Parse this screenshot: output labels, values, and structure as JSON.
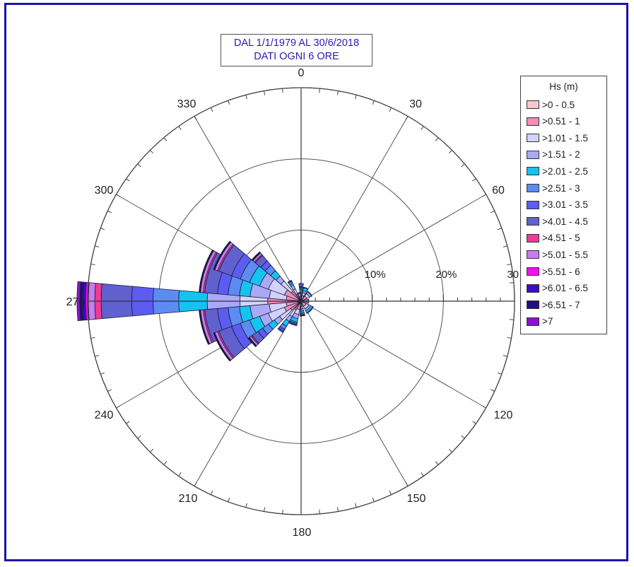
{
  "chart_data": {
    "type": "wind-rose",
    "title_lines": [
      "DAL 1/1/1979 AL 30/6/2018",
      "DATI OGNI 6 ORE"
    ],
    "angle_labels": [
      "0",
      "30",
      "60",
      "120",
      "150",
      "180",
      "210",
      "240",
      "270",
      "300",
      "330"
    ],
    "radial_axis": {
      "unit": "%",
      "max": 30,
      "ticks": [
        10,
        20,
        30
      ],
      "tick_labels": [
        "10%",
        "20%",
        "30"
      ]
    },
    "legend": {
      "title": "Hs (m)",
      "items": [
        {
          "label": ">0 - 0.5",
          "color": "#f7c8cf"
        },
        {
          "label": ">0.51 - 1",
          "color": "#f08eb8"
        },
        {
          "label": ">1.01 - 1.5",
          "color": "#d2d2fb"
        },
        {
          "label": ">1.51 - 2",
          "color": "#a9a9f8"
        },
        {
          "label": ">2.01 - 2.5",
          "color": "#14c4f0"
        },
        {
          "label": ">2.51 - 3",
          "color": "#5c8cf2"
        },
        {
          "label": ">3.01 - 3.5",
          "color": "#5c5cf0"
        },
        {
          "label": ">4.01 - 4.5",
          "color": "#6060cf"
        },
        {
          "label": ">4.51 - 5",
          "color": "#ee3c92"
        },
        {
          "label": ">5.01 - 5.5",
          "color": "#c87cf2"
        },
        {
          "label": ">5.51 - 6",
          "color": "#ee14e6"
        },
        {
          "label": ">6.01 - 6.5",
          "color": "#3c0cd0"
        },
        {
          "label": ">6.51 - 7",
          "color": "#22107c"
        },
        {
          "label": ">7",
          "color": "#8c14c8"
        }
      ]
    },
    "sectors": [
      {
        "direction": 285,
        "width": 30,
        "values": [
          0.5,
          1.6,
          2.4,
          2.7,
          1.5,
          1.6,
          1.5,
          1.8,
          0.2,
          0.4,
          0.05,
          0.05,
          0.05,
          0.05
        ]
      },
      {
        "direction": 255,
        "width": 20,
        "values": [
          0.5,
          1.6,
          2.4,
          2.7,
          1.5,
          1.6,
          1.5,
          1.8,
          0.2,
          0.4,
          0.05,
          0.05,
          0.05,
          0.05
        ]
      },
      {
        "direction": 270,
        "width": 10,
        "values": [
          0.8,
          3.9,
          3.9,
          4.6,
          4.0,
          3.6,
          3.0,
          4.3,
          0.9,
          0.9,
          0.4,
          0.4,
          0.4,
          0.4
        ]
      },
      {
        "direction": 300,
        "width": 20,
        "values": [
          0.4,
          2.1,
          2.4,
          1.3,
          1.5,
          1.4,
          1.3,
          1.9,
          0.2,
          0.4,
          0.05,
          0.05,
          0.05,
          0.05
        ]
      },
      {
        "direction": 240,
        "width": 20,
        "values": [
          0.4,
          2.1,
          2.4,
          1.3,
          1.5,
          1.4,
          1.3,
          1.9,
          0.2,
          0.4,
          0.05,
          0.05,
          0.05,
          0.05
        ]
      },
      {
        "direction": 315,
        "width": 10,
        "values": [
          0.4,
          1.4,
          1.9,
          0.9,
          1.0,
          1.0,
          0.8,
          1.0,
          0.15,
          0.3,
          0.05,
          0.05,
          0.05,
          0.05
        ]
      },
      {
        "direction": 230,
        "width": 10,
        "values": [
          0.4,
          1.4,
          1.9,
          0.9,
          1.0,
          1.0,
          0.8,
          1.0,
          0.15,
          0.3,
          0.05,
          0.05,
          0.05,
          0.05
        ]
      },
      {
        "direction": 330,
        "width": 10,
        "values": [
          0.3,
          0.8,
          0.8,
          0.6,
          0.3,
          0.3,
          0.1,
          0.05,
          0,
          0,
          0,
          0,
          0,
          0
        ]
      },
      {
        "direction": 345,
        "width": 15,
        "values": [
          0.3,
          0.4,
          0.4,
          0.1,
          0.05,
          0,
          0,
          0,
          0,
          0,
          0,
          0,
          0,
          0
        ]
      },
      {
        "direction": 0,
        "width": 15,
        "values": [
          0.3,
          0.4,
          0.3,
          0.2,
          0.5,
          0.2,
          0.1,
          0.5,
          0,
          0,
          0,
          0,
          0,
          0
        ]
      },
      {
        "direction": 20,
        "width": 20,
        "values": [
          0.3,
          0.5,
          0.4,
          0.3,
          0.4,
          0.1,
          0,
          0,
          0,
          0,
          0,
          0,
          0,
          0
        ]
      },
      {
        "direction": 50,
        "width": 30,
        "values": [
          0.3,
          0.6,
          0.4,
          0.3,
          0.1,
          0,
          0,
          0,
          0,
          0,
          0,
          0,
          0,
          0
        ]
      },
      {
        "direction": 90,
        "width": 30,
        "values": [
          0.3,
          0.5,
          0.2,
          0.1,
          0,
          0,
          0,
          0,
          0,
          0,
          0,
          0,
          0,
          0
        ]
      },
      {
        "direction": 135,
        "width": 40,
        "values": [
          0.3,
          0.5,
          0.4,
          0.3,
          0.3,
          0.1,
          0,
          0,
          0,
          0,
          0,
          0,
          0,
          0
        ]
      },
      {
        "direction": 175,
        "width": 20,
        "values": [
          0.3,
          0.4,
          0.4,
          0.3,
          0.3,
          0.2,
          0.1,
          0.1,
          0,
          0,
          0,
          0,
          0,
          0
        ]
      },
      {
        "direction": 200,
        "width": 20,
        "values": [
          0.4,
          0.8,
          0.7,
          0.6,
          0.5,
          0.2,
          0.2,
          0.1,
          0,
          0,
          0,
          0,
          0,
          0
        ]
      },
      {
        "direction": 215,
        "width": 10,
        "values": [
          0.4,
          1.0,
          1.1,
          0.8,
          0.8,
          0.5,
          0.3,
          0.2,
          0,
          0,
          0,
          0,
          0,
          0
        ]
      }
    ]
  }
}
